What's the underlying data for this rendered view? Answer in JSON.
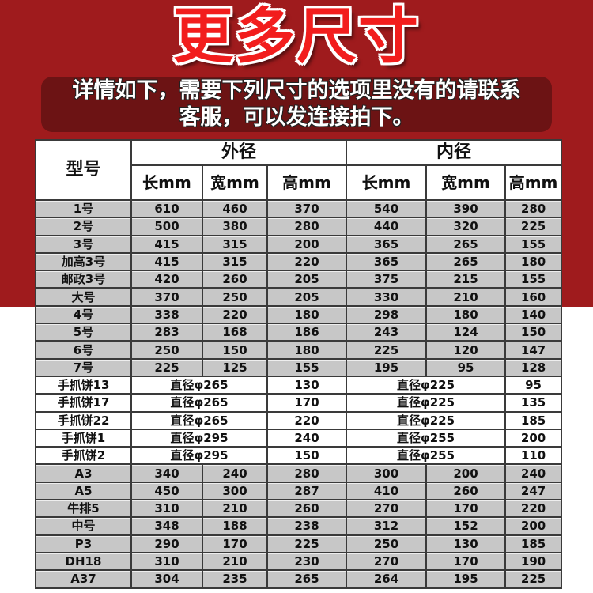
{
  "title": "更多尺寸",
  "note_line1": "详情如下，需要下列尺寸的选项里没有的请联系",
  "note_line2": "客服，可以发连接拍下。",
  "colors": {
    "banner": "#9f1b1d",
    "title": "#f21d1d",
    "note_bg": "#6c1314",
    "row_gray": "#c7c7c7"
  },
  "table": {
    "model_header": "型号",
    "outer_header": "外径",
    "inner_header": "内径",
    "sub_headers": [
      "长mm",
      "宽mm",
      "高mm",
      "长mm",
      "宽mm",
      "高mm"
    ],
    "rows": [
      {
        "model": "1号",
        "v": [
          "610",
          "460",
          "370",
          "540",
          "390",
          "280"
        ]
      },
      {
        "model": "2号",
        "v": [
          "500",
          "380",
          "280",
          "440",
          "320",
          "225"
        ]
      },
      {
        "model": "3号",
        "v": [
          "415",
          "315",
          "200",
          "365",
          "265",
          "155"
        ]
      },
      {
        "model": "加高3号",
        "v": [
          "415",
          "315",
          "220",
          "365",
          "265",
          "180"
        ]
      },
      {
        "model": "邮政3号",
        "v": [
          "420",
          "260",
          "205",
          "375",
          "215",
          "155"
        ]
      },
      {
        "model": "大号",
        "v": [
          "370",
          "250",
          "205",
          "330",
          "210",
          "160"
        ]
      },
      {
        "model": "4号",
        "v": [
          "338",
          "220",
          "180",
          "298",
          "180",
          "140"
        ]
      },
      {
        "model": "5号",
        "v": [
          "283",
          "168",
          "186",
          "243",
          "124",
          "150"
        ]
      },
      {
        "model": "6号",
        "v": [
          "250",
          "150",
          "180",
          "225",
          "120",
          "147"
        ]
      },
      {
        "model": "7号",
        "v": [
          "225",
          "125",
          "155",
          "195",
          "95",
          "128"
        ]
      }
    ],
    "round_rows": [
      {
        "model": "手抓饼13",
        "outer_dia": "直径φ265",
        "outer_h": "130",
        "inner_dia": "直径φ225",
        "inner_h": "95"
      },
      {
        "model": "手抓饼17",
        "outer_dia": "直径φ265",
        "outer_h": "170",
        "inner_dia": "直径φ225",
        "inner_h": "135"
      },
      {
        "model": "手抓饼22",
        "outer_dia": "直径φ265",
        "outer_h": "220",
        "inner_dia": "直径φ225",
        "inner_h": "185"
      },
      {
        "model": "手抓饼1",
        "outer_dia": "直径φ295",
        "outer_h": "240",
        "inner_dia": "直径φ255",
        "inner_h": "200"
      },
      {
        "model": "手抓饼2",
        "outer_dia": "直径φ295",
        "outer_h": "150",
        "inner_dia": "直径φ255",
        "inner_h": "110"
      }
    ],
    "rows2": [
      {
        "model": "A3",
        "v": [
          "340",
          "240",
          "280",
          "300",
          "200",
          "240"
        ]
      },
      {
        "model": "A5",
        "v": [
          "450",
          "300",
          "287",
          "410",
          "260",
          "247"
        ]
      },
      {
        "model": "牛排5",
        "v": [
          "310",
          "210",
          "260",
          "270",
          "170",
          "220"
        ]
      },
      {
        "model": "中号",
        "v": [
          "348",
          "188",
          "238",
          "312",
          "152",
          "200"
        ]
      },
      {
        "model": "P3",
        "v": [
          "290",
          "170",
          "225",
          "250",
          "130",
          "185"
        ]
      },
      {
        "model": "DH18",
        "v": [
          "310",
          "210",
          "230",
          "270",
          "170",
          "190"
        ]
      },
      {
        "model": "A37",
        "v": [
          "304",
          "235",
          "265",
          "264",
          "195",
          "225"
        ]
      }
    ]
  }
}
